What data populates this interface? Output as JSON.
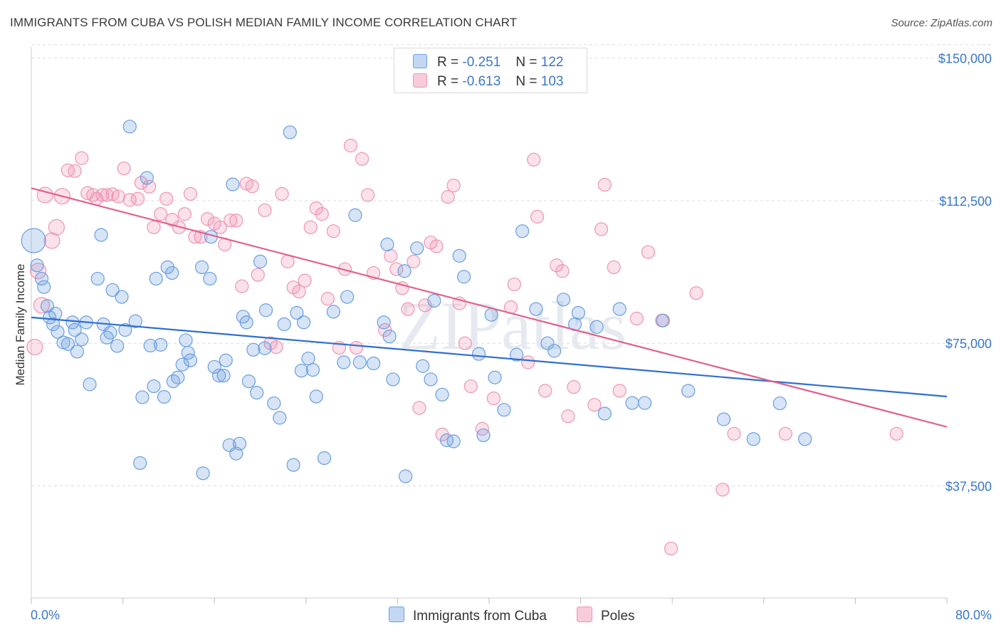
{
  "title": "IMMIGRANTS FROM CUBA VS POLISH MEDIAN FAMILY INCOME CORRELATION CHART",
  "source": "Source: ZipAtlas.com",
  "watermark": "ZIPatlas",
  "legend": {
    "cuba": {
      "r_label": "R =",
      "r_value": "-0.251",
      "n_label": "N =",
      "n_value": "122"
    },
    "poles": {
      "r_label": "R =",
      "r_value": "-0.613",
      "n_label": "N =",
      "n_value": "103"
    }
  },
  "bottom_legend": {
    "cuba": "Immigrants from Cuba",
    "poles": "Poles"
  },
  "chart_data": {
    "type": "scatter",
    "xlabel": "",
    "ylabel": "Median Family Income",
    "xlim": [
      0,
      80
    ],
    "ylim": [
      8000,
      155000
    ],
    "x_tick_labels": {
      "left": "0.0%",
      "right": "80.0%"
    },
    "y_ticks": [
      37500,
      75000,
      112500,
      150000
    ],
    "y_tick_labels": [
      "$37,500",
      "$75,000",
      "$112,500",
      "$150,000"
    ],
    "colors": {
      "cuba": "#6a9ee0",
      "cuba_line": "#2f6fd0",
      "poles": "#ee95b3",
      "poles_line": "#e0628e"
    },
    "series": [
      {
        "name": "Immigrants from Cuba",
        "trend": [
          [
            0,
            81800
          ],
          [
            80,
            61000
          ]
        ],
        "points": [
          [
            0.2,
            102000,
            1
          ],
          [
            0.5,
            95500,
            0
          ],
          [
            0.9,
            92000,
            0
          ],
          [
            1.1,
            89800,
            0
          ],
          [
            1.4,
            84800,
            0
          ],
          [
            1.6,
            81800,
            0
          ],
          [
            1.9,
            80000,
            0
          ],
          [
            2.1,
            82800,
            0
          ],
          [
            2.3,
            78000,
            0
          ],
          [
            2.8,
            75200,
            0
          ],
          [
            3.2,
            74800,
            0
          ],
          [
            3.6,
            80500,
            0
          ],
          [
            3.8,
            78500,
            0
          ],
          [
            4.0,
            72800,
            0
          ],
          [
            4.4,
            76000,
            0
          ],
          [
            4.8,
            80500,
            0
          ],
          [
            5.1,
            64200,
            0
          ],
          [
            5.8,
            92000,
            0
          ],
          [
            6.1,
            103500,
            0
          ],
          [
            6.3,
            80000,
            0
          ],
          [
            6.6,
            76500,
            0
          ],
          [
            6.9,
            77800,
            0
          ],
          [
            7.1,
            89000,
            0
          ],
          [
            7.5,
            74300,
            0
          ],
          [
            7.9,
            87200,
            0
          ],
          [
            8.2,
            78500,
            0
          ],
          [
            8.6,
            132000,
            0
          ],
          [
            9.1,
            80800,
            0
          ],
          [
            9.5,
            43500,
            0
          ],
          [
            9.7,
            60800,
            0
          ],
          [
            10.1,
            118500,
            0
          ],
          [
            10.4,
            74400,
            0
          ],
          [
            10.7,
            63700,
            0
          ],
          [
            10.9,
            92000,
            0
          ],
          [
            11.3,
            74600,
            0
          ],
          [
            11.6,
            60900,
            0
          ],
          [
            11.9,
            95000,
            0
          ],
          [
            12.3,
            93500,
            0
          ],
          [
            12.4,
            65000,
            0
          ],
          [
            12.8,
            66000,
            0
          ],
          [
            13.2,
            69400,
            0
          ],
          [
            13.5,
            75800,
            0
          ],
          [
            13.7,
            72500,
            0
          ],
          [
            13.9,
            70500,
            0
          ],
          [
            14.9,
            95000,
            0
          ],
          [
            15.0,
            40800,
            0
          ],
          [
            15.6,
            92000,
            0
          ],
          [
            15.7,
            103000,
            0
          ],
          [
            16.0,
            68800,
            0
          ],
          [
            16.4,
            66500,
            0
          ],
          [
            16.8,
            66500,
            0
          ],
          [
            17.0,
            70500,
            0
          ],
          [
            17.3,
            48200,
            0
          ],
          [
            17.6,
            116800,
            0
          ],
          [
            17.9,
            46000,
            0
          ],
          [
            18.2,
            48600,
            0
          ],
          [
            18.5,
            82000,
            0
          ],
          [
            18.8,
            80500,
            0
          ],
          [
            19.0,
            65000,
            0
          ],
          [
            19.4,
            73300,
            0
          ],
          [
            19.7,
            62000,
            0
          ],
          [
            20.0,
            96500,
            0
          ],
          [
            20.4,
            73700,
            0
          ],
          [
            20.5,
            83700,
            0
          ],
          [
            21.2,
            59200,
            0
          ],
          [
            21.7,
            55400,
            0
          ],
          [
            22.1,
            80000,
            0
          ],
          [
            22.6,
            130500,
            0
          ],
          [
            22.9,
            43000,
            0
          ],
          [
            23.2,
            83000,
            0
          ],
          [
            23.6,
            67800,
            0
          ],
          [
            23.8,
            80500,
            0
          ],
          [
            24.2,
            71000,
            0
          ],
          [
            24.6,
            68000,
            0
          ],
          [
            24.9,
            61000,
            0
          ],
          [
            25.6,
            44800,
            0
          ],
          [
            26.4,
            83300,
            0
          ],
          [
            27.3,
            70000,
            0
          ],
          [
            27.6,
            87200,
            0
          ],
          [
            28.3,
            108700,
            0
          ],
          [
            28.7,
            70000,
            0
          ],
          [
            29.9,
            69700,
            0
          ],
          [
            30.8,
            80500,
            0
          ],
          [
            31.1,
            101000,
            0
          ],
          [
            31.3,
            76800,
            0
          ],
          [
            31.6,
            65500,
            0
          ],
          [
            32.6,
            94000,
            0
          ],
          [
            32.7,
            40000,
            0
          ],
          [
            33.7,
            100000,
            0
          ],
          [
            34.2,
            69000,
            0
          ],
          [
            34.9,
            65500,
            0
          ],
          [
            35.2,
            86200,
            0
          ],
          [
            35.9,
            61500,
            0
          ],
          [
            36.3,
            49500,
            0
          ],
          [
            36.9,
            49200,
            0
          ],
          [
            37.4,
            98000,
            0
          ],
          [
            37.8,
            92500,
            0
          ],
          [
            39.1,
            72200,
            0
          ],
          [
            39.5,
            50800,
            0
          ],
          [
            40.2,
            82500,
            0
          ],
          [
            40.5,
            66000,
            0
          ],
          [
            41.3,
            57500,
            0
          ],
          [
            42.4,
            72000,
            0
          ],
          [
            42.9,
            104500,
            0
          ],
          [
            44.1,
            84000,
            0
          ],
          [
            45.1,
            75000,
            0
          ],
          [
            45.7,
            73000,
            0
          ],
          [
            46.5,
            86500,
            0
          ],
          [
            47.5,
            80000,
            0
          ],
          [
            47.8,
            83000,
            0
          ],
          [
            49.4,
            79300,
            0
          ],
          [
            50.1,
            56500,
            0
          ],
          [
            51.4,
            84000,
            0
          ],
          [
            52.5,
            59300,
            0
          ],
          [
            53.6,
            59300,
            0
          ],
          [
            55.2,
            81000,
            0
          ],
          [
            57.4,
            62500,
            0
          ],
          [
            60.5,
            55000,
            0
          ],
          [
            63.1,
            49800,
            0
          ],
          [
            65.4,
            59200,
            0
          ],
          [
            67.6,
            49800,
            0
          ]
        ]
      },
      {
        "name": "Poles",
        "trend": [
          [
            0,
            115800
          ],
          [
            80,
            53000
          ]
        ],
        "points": [
          [
            0.3,
            74000,
            0
          ],
          [
            0.6,
            94000,
            0
          ],
          [
            0.9,
            85000,
            0
          ],
          [
            1.2,
            114000,
            0
          ],
          [
            1.8,
            102000,
            0
          ],
          [
            2.2,
            105500,
            0
          ],
          [
            2.7,
            113700,
            0
          ],
          [
            3.2,
            120500,
            0
          ],
          [
            3.8,
            120300,
            0
          ],
          [
            4.4,
            123700,
            0
          ],
          [
            4.9,
            114500,
            0
          ],
          [
            5.4,
            114000,
            0
          ],
          [
            5.7,
            113000,
            0
          ],
          [
            6.2,
            114000,
            0
          ],
          [
            6.6,
            114000,
            0
          ],
          [
            7.1,
            114200,
            0
          ],
          [
            7.6,
            113600,
            0
          ],
          [
            8.1,
            121000,
            0
          ],
          [
            8.6,
            112700,
            0
          ],
          [
            9.3,
            113000,
            0
          ],
          [
            9.6,
            117200,
            0
          ],
          [
            10.3,
            116200,
            0
          ],
          [
            10.7,
            105500,
            0
          ],
          [
            11.3,
            109000,
            0
          ],
          [
            11.8,
            113000,
            0
          ],
          [
            12.3,
            107500,
            0
          ],
          [
            12.9,
            105500,
            0
          ],
          [
            13.4,
            109000,
            0
          ],
          [
            13.9,
            114300,
            0
          ],
          [
            14.3,
            103000,
            0
          ],
          [
            14.8,
            103000,
            0
          ],
          [
            15.4,
            107700,
            0
          ],
          [
            16.0,
            106500,
            0
          ],
          [
            16.5,
            105500,
            0
          ],
          [
            16.9,
            101000,
            0
          ],
          [
            17.4,
            107300,
            0
          ],
          [
            17.9,
            107300,
            0
          ],
          [
            18.4,
            90000,
            0
          ],
          [
            18.8,
            117000,
            0
          ],
          [
            19.3,
            116300,
            0
          ],
          [
            19.8,
            93000,
            0
          ],
          [
            20.4,
            110000,
            0
          ],
          [
            20.9,
            75000,
            0
          ],
          [
            21.4,
            74000,
            0
          ],
          [
            21.9,
            114300,
            0
          ],
          [
            22.4,
            96500,
            0
          ],
          [
            22.9,
            89700,
            0
          ],
          [
            23.4,
            88600,
            0
          ],
          [
            23.9,
            91500,
            0
          ],
          [
            24.4,
            105500,
            0
          ],
          [
            24.9,
            110500,
            0
          ],
          [
            25.4,
            109000,
            0
          ],
          [
            25.9,
            86700,
            0
          ],
          [
            26.4,
            104500,
            0
          ],
          [
            26.9,
            73800,
            0
          ],
          [
            27.4,
            94500,
            0
          ],
          [
            27.9,
            127000,
            0
          ],
          [
            28.4,
            73800,
            0
          ],
          [
            28.9,
            123500,
            0
          ],
          [
            29.4,
            114000,
            0
          ],
          [
            29.9,
            93500,
            0
          ],
          [
            30.9,
            78500,
            0
          ],
          [
            31.4,
            98000,
            0
          ],
          [
            31.9,
            94500,
            0
          ],
          [
            32.4,
            89500,
            0
          ],
          [
            32.9,
            84000,
            0
          ],
          [
            33.4,
            96500,
            0
          ],
          [
            33.9,
            58000,
            0
          ],
          [
            34.4,
            85000,
            0
          ],
          [
            34.9,
            101500,
            0
          ],
          [
            35.4,
            100500,
            0
          ],
          [
            35.9,
            51000,
            0
          ],
          [
            36.4,
            113500,
            0
          ],
          [
            36.9,
            116500,
            0
          ],
          [
            37.4,
            85500,
            0
          ],
          [
            37.9,
            75000,
            0
          ],
          [
            38.4,
            63700,
            0
          ],
          [
            39.4,
            52500,
            0
          ],
          [
            40.4,
            60500,
            0
          ],
          [
            41.9,
            84500,
            0
          ],
          [
            42.2,
            90500,
            0
          ],
          [
            43.4,
            70000,
            0
          ],
          [
            43.9,
            123300,
            0
          ],
          [
            44.2,
            108300,
            0
          ],
          [
            44.9,
            62500,
            0
          ],
          [
            45.9,
            95500,
            0
          ],
          [
            46.4,
            94000,
            0
          ],
          [
            46.9,
            55800,
            0
          ],
          [
            47.4,
            63500,
            0
          ],
          [
            49.2,
            58800,
            0
          ],
          [
            50.1,
            116700,
            0
          ],
          [
            50.9,
            95000,
            0
          ],
          [
            51.4,
            62500,
            0
          ],
          [
            52.9,
            81500,
            0
          ],
          [
            53.9,
            99000,
            0
          ],
          [
            55.1,
            81000,
            0
          ],
          [
            55.9,
            21000,
            0
          ],
          [
            58.1,
            88200,
            0
          ],
          [
            60.4,
            36500,
            0
          ],
          [
            61.4,
            51200,
            0
          ],
          [
            65.9,
            51200,
            0
          ],
          [
            75.6,
            51200,
            0
          ],
          [
            49.8,
            105000,
            0
          ]
        ]
      }
    ]
  }
}
